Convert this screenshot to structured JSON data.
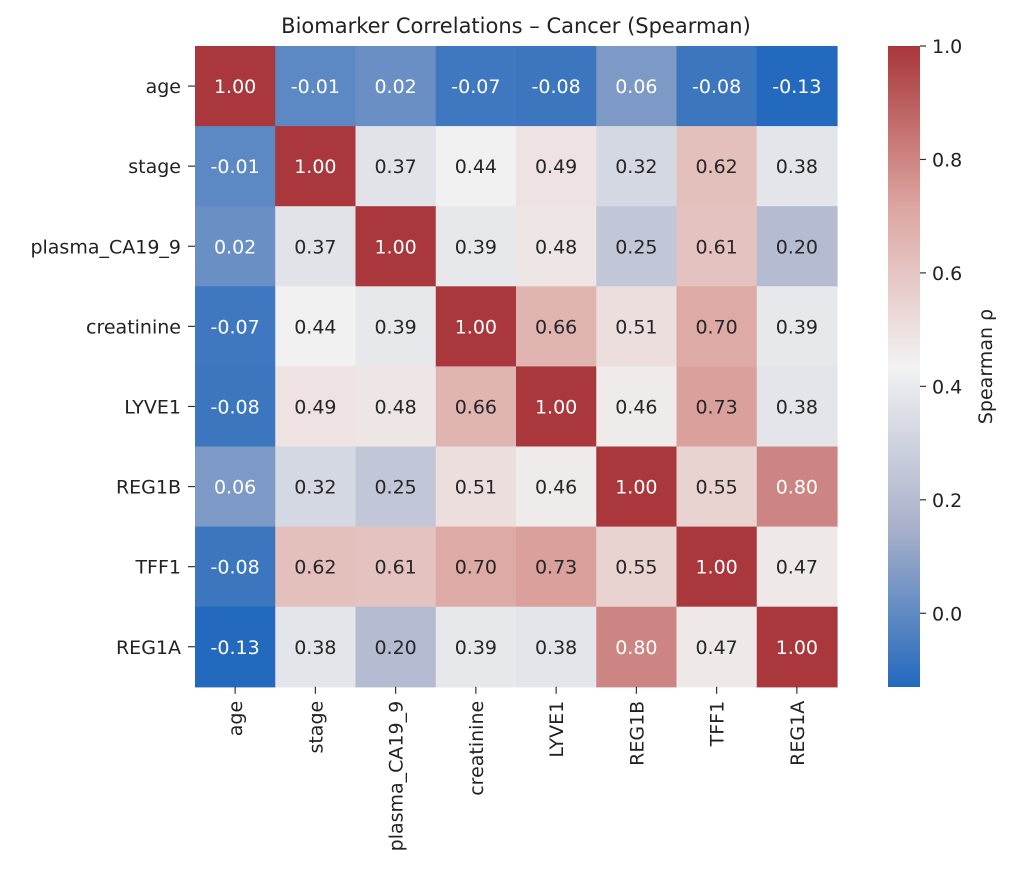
{
  "chart_data": {
    "type": "heatmap",
    "title": "Biomarker Correlations – Cancer (Spearman)",
    "xlabel": "",
    "ylabel": "",
    "labels": [
      "age",
      "stage",
      "plasma_CA19_9",
      "creatinine",
      "LYVE1",
      "REG1B",
      "TFF1",
      "REG1A"
    ],
    "values": [
      [
        1.0,
        -0.01,
        0.02,
        -0.07,
        -0.08,
        0.06,
        -0.08,
        -0.13
      ],
      [
        -0.01,
        1.0,
        0.37,
        0.44,
        0.49,
        0.32,
        0.62,
        0.38
      ],
      [
        0.02,
        0.37,
        1.0,
        0.39,
        0.48,
        0.25,
        0.61,
        0.2
      ],
      [
        -0.07,
        0.44,
        0.39,
        1.0,
        0.66,
        0.51,
        0.7,
        0.39
      ],
      [
        -0.08,
        0.49,
        0.48,
        0.66,
        1.0,
        0.46,
        0.73,
        0.38
      ],
      [
        0.06,
        0.32,
        0.25,
        0.51,
        0.46,
        1.0,
        0.55,
        0.8
      ],
      [
        -0.08,
        0.62,
        0.61,
        0.7,
        0.73,
        0.55,
        1.0,
        0.47
      ],
      [
        -0.13,
        0.38,
        0.2,
        0.39,
        0.38,
        0.8,
        0.47,
        1.0
      ]
    ],
    "colorbar": {
      "label": "Spearman ρ",
      "range": [
        -0.13,
        1.0
      ],
      "ticks": [
        0.0,
        0.2,
        0.4,
        0.6,
        0.8,
        1.0
      ],
      "tick_labels": [
        "0.0",
        "0.2",
        "0.4",
        "0.6",
        "0.8",
        "1.0"
      ]
    },
    "colormap": "vlag",
    "colormap_stops": [
      "#2369bd",
      "#a9b1ca",
      "#f2f2f2",
      "#dca5a0",
      "#a9373b"
    ]
  }
}
